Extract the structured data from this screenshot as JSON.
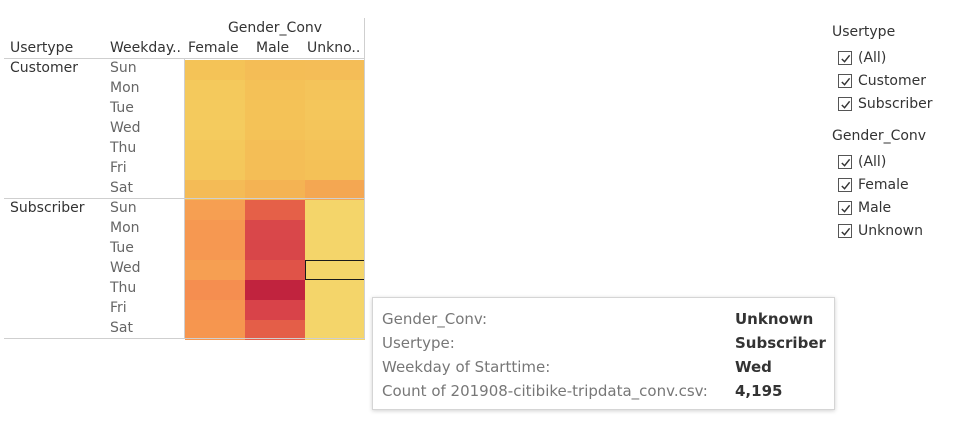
{
  "table": {
    "column_title": "Gender_Conv",
    "usertype_header": "Usertype",
    "weekday_header": "Weekday..",
    "columns": [
      "Female",
      "Male",
      "Unkno.."
    ],
    "groups": [
      {
        "label": "Customer",
        "days": [
          "Sun",
          "Mon",
          "Tue",
          "Wed",
          "Thu",
          "Fri",
          "Sat"
        ],
        "colors": [
          [
            "#f4c357",
            "#f4bd56",
            "#f4bd57"
          ],
          [
            "#f4c95c",
            "#f4c157",
            "#f4c45a"
          ],
          [
            "#f4ca5d",
            "#f4c257",
            "#f4c65b"
          ],
          [
            "#f4cb5e",
            "#f4c257",
            "#f4c55a"
          ],
          [
            "#f4c85b",
            "#f4be56",
            "#f4c258"
          ],
          [
            "#f4c75b",
            "#f4be56",
            "#f4c157"
          ],
          [
            "#f4bb56",
            "#f4b353",
            "#f4a752"
          ]
        ]
      },
      {
        "label": "Subscriber",
        "days": [
          "Sun",
          "Mon",
          "Tue",
          "Wed",
          "Thu",
          "Fri",
          "Sat"
        ],
        "colors": [
          [
            "#f69f52",
            "#e56048",
            "#f4d56a"
          ],
          [
            "#f69851",
            "#d9474a",
            "#f4d56a"
          ],
          [
            "#f69851",
            "#d84649",
            "#f4d56a"
          ],
          [
            "#f69f52",
            "#e05348",
            "#f4d56a"
          ],
          [
            "#f58e50",
            "#c1233e",
            "#f4d56a"
          ],
          [
            "#f69450",
            "#d84349",
            "#f4d56a"
          ],
          [
            "#f6964f",
            "#e45e48",
            "#f4d56a"
          ]
        ]
      }
    ],
    "selected": {
      "group": 1,
      "row": 3,
      "col": 2
    }
  },
  "filters": [
    {
      "title": "Usertype",
      "items": [
        {
          "label": "(All)",
          "checked": true
        },
        {
          "label": "Customer",
          "checked": true
        },
        {
          "label": "Subscriber",
          "checked": true
        }
      ]
    },
    {
      "title": "Gender_Conv",
      "items": [
        {
          "label": "(All)",
          "checked": true
        },
        {
          "label": "Female",
          "checked": true
        },
        {
          "label": "Male",
          "checked": true
        },
        {
          "label": "Unknown",
          "checked": true
        }
      ]
    }
  ],
  "tooltip": {
    "rows": [
      {
        "key": "Gender_Conv:",
        "value": "Unknown"
      },
      {
        "key": "Usertype:",
        "value": "Subscriber"
      },
      {
        "key": "Weekday of Starttime:",
        "value": "Wed"
      },
      {
        "key": "Count of 201908-citibike-tripdata_conv.csv:",
        "value": "4,195"
      }
    ]
  }
}
